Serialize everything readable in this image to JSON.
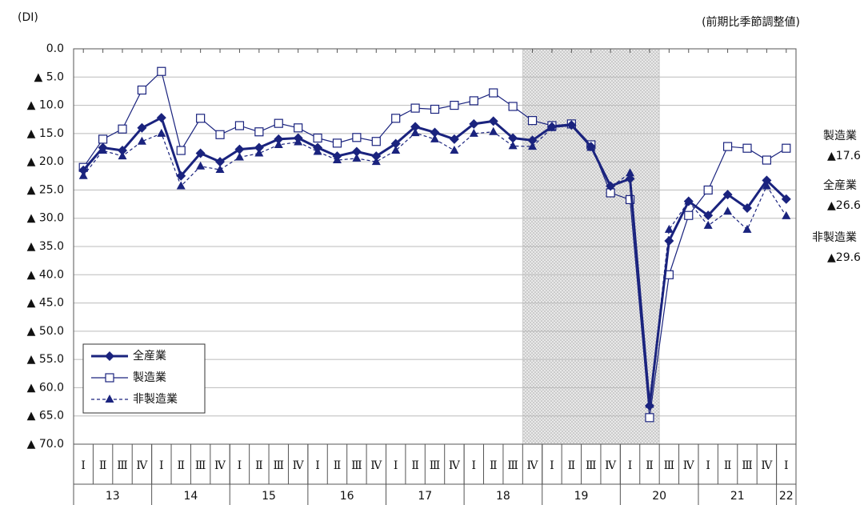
{
  "chart_data": {
    "type": "line",
    "unit_label": "(DI)",
    "subtitle": "(前期比季節調整値)",
    "categories": [
      "Ⅰ",
      "Ⅱ",
      "Ⅲ",
      "Ⅳ",
      "Ⅰ",
      "Ⅱ",
      "Ⅲ",
      "Ⅳ",
      "Ⅰ",
      "Ⅱ",
      "Ⅲ",
      "Ⅳ",
      "Ⅰ",
      "Ⅱ",
      "Ⅲ",
      "Ⅳ",
      "Ⅰ",
      "Ⅱ",
      "Ⅲ",
      "Ⅳ",
      "Ⅰ",
      "Ⅱ",
      "Ⅲ",
      "Ⅳ",
      "Ⅰ",
      "Ⅱ",
      "Ⅲ",
      "Ⅳ",
      "Ⅰ",
      "Ⅱ",
      "Ⅲ",
      "Ⅳ",
      "Ⅰ",
      "Ⅱ",
      "Ⅲ",
      "Ⅳ",
      "Ⅰ"
    ],
    "years": [
      "13",
      "14",
      "15",
      "16",
      "17",
      "18",
      "19",
      "20",
      "21",
      "22"
    ],
    "ylim": [
      -70,
      0
    ],
    "yticks": [
      {
        "value": 0,
        "label": "0.0"
      },
      {
        "value": -5,
        "label": "▲ 5.0"
      },
      {
        "value": -10,
        "label": "▲ 10.0"
      },
      {
        "value": -15,
        "label": "▲ 15.0"
      },
      {
        "value": -20,
        "label": "▲ 20.0"
      },
      {
        "value": -25,
        "label": "▲ 25.0"
      },
      {
        "value": -30,
        "label": "▲ 30.0"
      },
      {
        "value": -35,
        "label": "▲ 35.0"
      },
      {
        "value": -40,
        "label": "▲ 40.0"
      },
      {
        "value": -45,
        "label": "▲ 45.0"
      },
      {
        "value": -50,
        "label": "▲ 50.0"
      },
      {
        "value": -55,
        "label": "▲ 55.0"
      },
      {
        "value": -60,
        "label": "▲ 60.0"
      },
      {
        "value": -65,
        "label": "▲ 65.0"
      },
      {
        "value": -70,
        "label": "▲ 70.0"
      }
    ],
    "grid": true,
    "shaded": {
      "start": 23,
      "end": 29
    },
    "series": [
      {
        "name": "全産業",
        "color": "#1a237e",
        "marker": "diamond",
        "dash": false,
        "width": 3,
        "end_label": "▲26.6",
        "values": [
          -21.5,
          -17.5,
          -18,
          -14,
          -12.2,
          -22.5,
          -18.5,
          -20,
          -17.8,
          -17.5,
          -16,
          -15.8,
          -17.5,
          -19,
          -18.2,
          -19,
          -16.8,
          -13.8,
          -14.8,
          -16,
          -13.3,
          -12.8,
          -15.8,
          -16.2,
          -13.8,
          -13.5,
          -17.3,
          -24.3,
          -23,
          -63.2,
          -34,
          -27,
          -29.5,
          -25.8,
          -28.2,
          -23.3,
          -26.6
        ]
      },
      {
        "name": "製造業",
        "color": "#1a237e",
        "marker": "square",
        "dash": false,
        "width": 1.2,
        "end_label": "▲17.6",
        "values": [
          -21,
          -16,
          -14.2,
          -7.3,
          -4,
          -18,
          -12.3,
          -15.2,
          -13.6,
          -14.7,
          -13.2,
          -14,
          -15.8,
          -16.7,
          -15.7,
          -16.4,
          -12.3,
          -10.5,
          -10.7,
          -10,
          -9.2,
          -7.8,
          -10.2,
          -12.7,
          -13.6,
          -13.3,
          -17,
          -25.5,
          -26.7,
          -65.3,
          -40,
          -29.5,
          -25,
          -17.3,
          -17.6,
          -19.7,
          -17.6
        ]
      },
      {
        "name": "非製造業",
        "color": "#1a237e",
        "marker": "triangle",
        "dash": true,
        "width": 1.2,
        "end_label": "▲29.6",
        "values": [
          -22.5,
          -18,
          -19,
          -16.4,
          -15,
          -24.3,
          -20.8,
          -21.4,
          -19.2,
          -18.5,
          -17,
          -16.5,
          -18.2,
          -19.7,
          -19.4,
          -20,
          -18,
          -14.9,
          -16,
          -18,
          -15,
          -14.7,
          -17.2,
          -17.3,
          -14,
          -13.5,
          -17.5,
          -24.5,
          -22,
          -63,
          -32,
          -27,
          -31.3,
          -28.8,
          -32,
          -24.3,
          -29.6
        ]
      }
    ]
  }
}
